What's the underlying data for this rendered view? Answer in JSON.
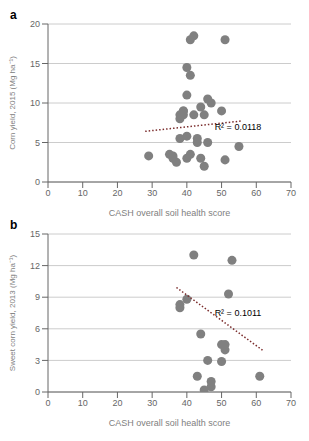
{
  "chart_data": [
    {
      "type": "scatter",
      "title": "a",
      "xlabel": "CASH overall soil health score",
      "ylabel": "Corn yield, 2015 (Mg ha⁻¹)",
      "xlim": [
        0,
        70
      ],
      "ylim": [
        0,
        20
      ],
      "xticks": [
        0,
        10,
        20,
        30,
        40,
        50,
        60,
        70
      ],
      "yticks": [
        0,
        5,
        10,
        15,
        20
      ],
      "grid": "y",
      "series": [
        {
          "type": "scatter",
          "marker": "circle",
          "color": "#808080",
          "x": [
            29,
            35,
            36,
            36,
            37,
            38,
            38,
            38,
            39,
            39,
            39,
            40,
            40,
            40,
            40,
            41,
            41,
            41,
            42,
            42,
            43,
            43,
            44,
            44,
            45,
            45,
            46,
            46,
            47,
            50,
            51,
            51,
            55
          ],
          "values": [
            3.3,
            3.5,
            3.0,
            3.3,
            2.5,
            5.5,
            8.0,
            8.5,
            9.0,
            9.0,
            8.5,
            5.8,
            3.0,
            11.0,
            14.5,
            3.5,
            13.5,
            18.0,
            18.5,
            8.5,
            5.5,
            5.0,
            9.5,
            3.0,
            2.0,
            8.5,
            5.0,
            10.5,
            10.0,
            9.0,
            2.8,
            18.0,
            4.5
          ]
        },
        {
          "type": "line",
          "line_style": "dotted",
          "color": "#7b2d2d",
          "x": [
            28,
            56
          ],
          "values": [
            6.416,
            7.732
          ]
        }
      ],
      "annotations": [
        {
          "text": "R² = 0.0118",
          "x": 48,
          "y": 7.0
        }
      ]
    },
    {
      "type": "scatter",
      "title": "b",
      "xlabel": "CASH overall soil health score",
      "ylabel": "Sweet corn yield, 2013 (Mg ha⁻¹)",
      "xlim": [
        0,
        70
      ],
      "ylim": [
        0,
        15
      ],
      "xticks": [
        0,
        10,
        20,
        30,
        40,
        50,
        60,
        70
      ],
      "yticks": [
        0,
        3,
        6,
        9,
        12,
        15
      ],
      "grid": "y",
      "series": [
        {
          "type": "scatter",
          "marker": "circle",
          "color": "#808080",
          "x": [
            38,
            38,
            40,
            42,
            43,
            44,
            45,
            46,
            47,
            47,
            50,
            50,
            51,
            51,
            52,
            53,
            61
          ],
          "values": [
            8.0,
            8.3,
            8.8,
            13.0,
            1.5,
            5.5,
            0.2,
            3.0,
            1.0,
            0.5,
            2.9,
            4.5,
            4.5,
            4.0,
            9.3,
            12.5,
            1.5
          ]
        },
        {
          "type": "line",
          "line_style": "dotted",
          "color": "#7b2d2d",
          "x": [
            37,
            62
          ],
          "values": [
            9.92,
            3.92
          ]
        }
      ],
      "annotations": [
        {
          "text": "R² = 0.1011",
          "x": 48,
          "y": 7.5
        }
      ]
    }
  ]
}
